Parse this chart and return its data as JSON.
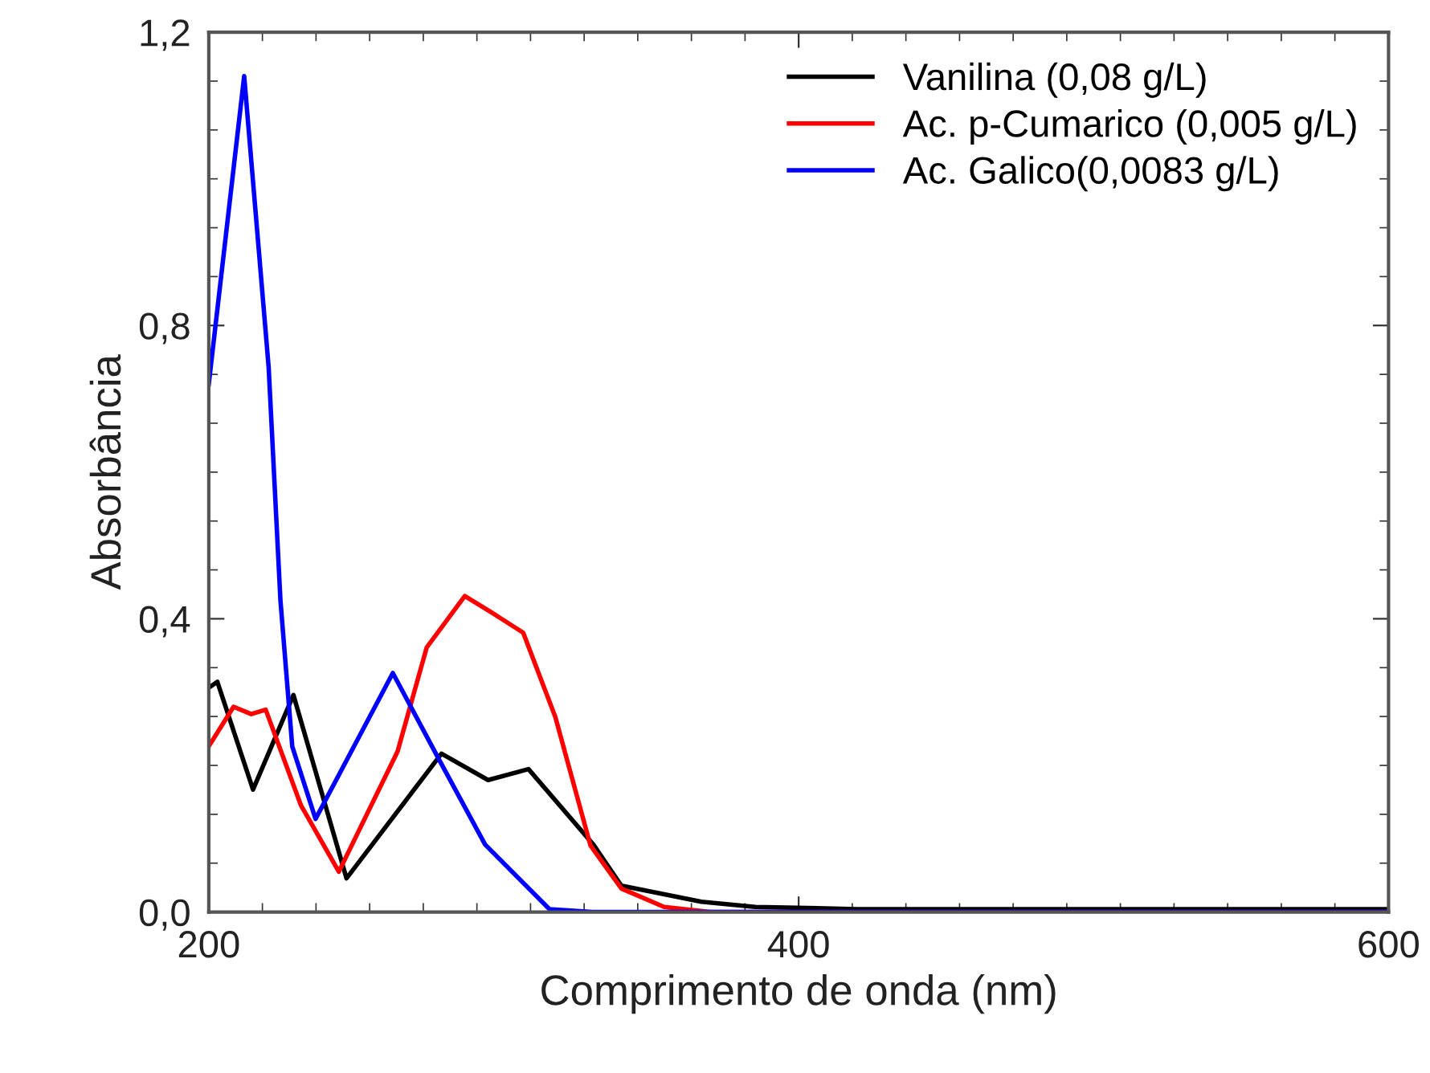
{
  "chart_data": {
    "type": "line",
    "xlabel": "Comprimento de onda (nm)",
    "ylabel": "Absorbância",
    "xlim": [
      200,
      600
    ],
    "ylim": [
      0,
      1.2
    ],
    "xticks": [
      200,
      {
        "value": 218.18,
        "label": null
      },
      {
        "value": 236.36,
        "label": null
      },
      {
        "value": 254.55,
        "label": null
      },
      {
        "value": 272.73,
        "label": null
      },
      {
        "value": 290.91,
        "label": null
      },
      {
        "value": 309.09,
        "label": null
      },
      {
        "value": 327.27,
        "label": null
      },
      {
        "value": 345.45,
        "label": null
      },
      {
        "value": 363.64,
        "label": null
      },
      {
        "value": 381.82,
        "label": null
      },
      400,
      {
        "value": 418.18,
        "label": null
      },
      {
        "value": 436.36,
        "label": null
      },
      {
        "value": 454.55,
        "label": null
      },
      {
        "value": 472.73,
        "label": null
      },
      {
        "value": 490.91,
        "label": null
      },
      {
        "value": 509.09,
        "label": null
      },
      {
        "value": 527.27,
        "label": null
      },
      {
        "value": 545.45,
        "label": null
      },
      {
        "value": 563.64,
        "label": null
      },
      {
        "value": 581.82,
        "label": null
      },
      600
    ],
    "yticks": [
      {
        "value": 0,
        "label": "0,0"
      },
      {
        "value": 0.0667,
        "label": null
      },
      {
        "value": 0.1333,
        "label": null
      },
      {
        "value": 0.2,
        "label": null
      },
      {
        "value": 0.2667,
        "label": null
      },
      {
        "value": 0.3333,
        "label": null
      },
      {
        "value": 0.4,
        "label": "0,4"
      },
      {
        "value": 0.4667,
        "label": null
      },
      {
        "value": 0.5333,
        "label": null
      },
      {
        "value": 0.6,
        "label": null
      },
      {
        "value": 0.6667,
        "label": null
      },
      {
        "value": 0.7333,
        "label": null
      },
      {
        "value": 0.8,
        "label": "0,8"
      },
      {
        "value": 0.8667,
        "label": null
      },
      {
        "value": 0.9333,
        "label": null
      },
      {
        "value": 1.0,
        "label": null
      },
      {
        "value": 1.0667,
        "label": null
      },
      {
        "value": 1.1333,
        "label": null
      },
      {
        "value": 1.2,
        "label": "1,2"
      }
    ],
    "grid": false,
    "legend": "top right",
    "marker": "none",
    "line_style": "solid",
    "series": [
      {
        "name": "Vanilina (0,08 g/L)",
        "color": "#000000",
        "x": [
          200,
          202.9,
          215,
          228.7,
          246.7,
          278.9,
          294.7,
          308.4,
          330.4,
          339.9,
          367,
          385.3,
          420,
          600
        ],
        "values": [
          0.306,
          0.314,
          0.167,
          0.296,
          0.046,
          0.216,
          0.18,
          0.195,
          0.092,
          0.036,
          0.014,
          0.007,
          0.004,
          0.004
        ]
      },
      {
        "name": "Ac. p-Cumarico (0,005 g/L)",
        "color": "#ff0000",
        "x": [
          200,
          208.4,
          214.4,
          219.3,
          231.2,
          244.1,
          264,
          273.9,
          286.8,
          295.7,
          306.6,
          317.5,
          329.4,
          339.9,
          354.4,
          370,
          600
        ],
        "values": [
          0.226,
          0.28,
          0.27,
          0.276,
          0.146,
          0.055,
          0.219,
          0.361,
          0.431,
          0.409,
          0.381,
          0.266,
          0.091,
          0.032,
          0.007,
          0,
          0
        ]
      },
      {
        "name": "Ac. Galico(0,0083 g/L)",
        "color": "#0000ff",
        "x": [
          200,
          212,
          220.3,
          224.3,
          228.3,
          236.2,
          262.4,
          277.8,
          293.7,
          315.5,
          330,
          600
        ],
        "values": [
          0.72,
          1.14,
          0.743,
          0.425,
          0.226,
          0.127,
          0.326,
          0.21,
          0.092,
          0.004,
          0,
          0
        ]
      }
    ]
  }
}
